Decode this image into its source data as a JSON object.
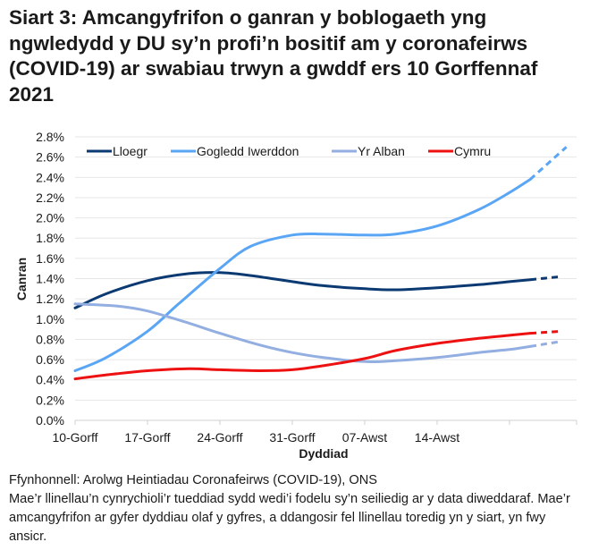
{
  "title": "Siart 3: Amcangyfrifon o ganran y boblogaeth yng ngwledydd y DU sy’n profi’n bositif am y coronafeirws (COVID-19) ar swabiau trwyn a gwddf ers 10 Gorffennaf 2021",
  "footer": {
    "source": "Ffynhonnell: Arolwg Heintiadau Coronafeirws (COVID-19), ONS",
    "note": "Mae’r llinellau’n cynrychioli’r tueddiad sydd wedi’i fodelu sy’n seiliedig ar y data diweddaraf. Mae’r amcangyfrifon ar gyfer dyddiau olaf y gyfres, a ddangosir fel llinellau toredig yn y siart, yn fwy ansicr."
  },
  "chart_data": {
    "type": "line",
    "title": "Siart 3: Amcangyfrifon o ganran y boblogaeth yng ngwledydd y DU sy’n profi’n bositif am y coronafeirws (COVID-19) ar swabiau trwyn a gwddf ers 10 Gorffennaf 2021",
    "xlabel": "Dyddiad",
    "ylabel": "Canran",
    "x_unit": "days since 10-Gorff",
    "x_ticks": [
      {
        "day": 0,
        "label": "10-Gorff"
      },
      {
        "day": 7,
        "label": "17-Gorff"
      },
      {
        "day": 14,
        "label": "24-Gorff"
      },
      {
        "day": 21,
        "label": "31-Gorff"
      },
      {
        "day": 28,
        "label": "07-Awst"
      },
      {
        "day": 35,
        "label": "14-Awst"
      }
    ],
    "xlim": [
      0,
      48
    ],
    "ylim": [
      0,
      2.8
    ],
    "y_ticks": [
      "0.0%",
      "0.2%",
      "0.4%",
      "0.6%",
      "0.8%",
      "1.0%",
      "1.2%",
      "1.4%",
      "1.6%",
      "1.8%",
      "2.0%",
      "2.2%",
      "2.4%",
      "2.6%",
      "2.8%"
    ],
    "grid": true,
    "legend_position": "top",
    "dashed_from_day": 44,
    "series": [
      {
        "name": "Lloegr",
        "color": "#0b3a73",
        "x": [
          0,
          3,
          7,
          11,
          14,
          17,
          21,
          24,
          28,
          31,
          35,
          39,
          42,
          44,
          47
        ],
        "values": [
          1.11,
          1.25,
          1.38,
          1.45,
          1.46,
          1.43,
          1.37,
          1.33,
          1.3,
          1.29,
          1.31,
          1.34,
          1.37,
          1.39,
          1.42
        ]
      },
      {
        "name": "Gogledd Iwerddon",
        "color": "#5aa6f5",
        "x": [
          0,
          3,
          7,
          10,
          14,
          17,
          21,
          24,
          28,
          31,
          35,
          39,
          42,
          44,
          47.5
        ],
        "values": [
          0.49,
          0.62,
          0.88,
          1.15,
          1.5,
          1.72,
          1.83,
          1.84,
          1.83,
          1.84,
          1.92,
          2.08,
          2.25,
          2.38,
          2.7
        ]
      },
      {
        "name": "Yr Alban",
        "color": "#93aee0",
        "x": [
          0,
          4,
          7,
          11,
          14,
          18,
          21,
          24,
          28,
          31,
          35,
          39,
          42,
          44,
          47
        ],
        "values": [
          1.15,
          1.13,
          1.08,
          0.96,
          0.86,
          0.74,
          0.67,
          0.62,
          0.58,
          0.59,
          0.62,
          0.67,
          0.7,
          0.73,
          0.78
        ]
      },
      {
        "name": "Cymru",
        "color": "#ee1111",
        "x": [
          0,
          4,
          7,
          11,
          14,
          18,
          21,
          24,
          28,
          31,
          35,
          39,
          42,
          44,
          47
        ],
        "values": [
          0.41,
          0.46,
          0.49,
          0.51,
          0.5,
          0.49,
          0.5,
          0.54,
          0.61,
          0.69,
          0.76,
          0.81,
          0.84,
          0.86,
          0.88
        ]
      }
    ]
  }
}
